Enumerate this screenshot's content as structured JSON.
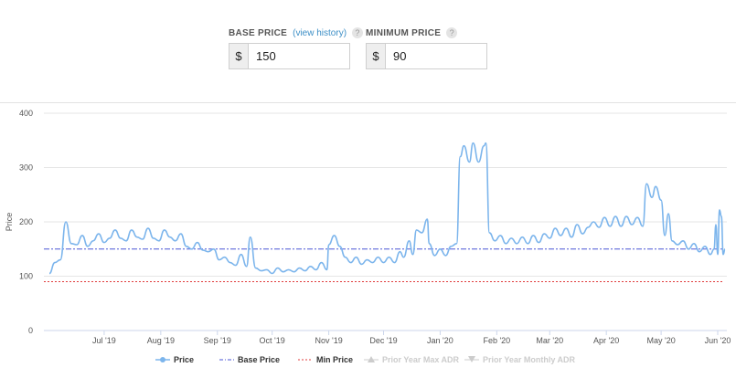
{
  "base_price": {
    "label": "BASE PRICE",
    "history_link": "(view history)",
    "help": "?",
    "currency": "$",
    "value": "150"
  },
  "minimum_price": {
    "label": "MINIMUM PRICE",
    "help": "?",
    "currency": "$",
    "value": "90"
  },
  "colors": {
    "price": "#7cb5ec",
    "base": "#4a56d6",
    "min": "#e03c3c",
    "disabled": "#cccccc"
  },
  "chart_data": {
    "type": "line",
    "ylabel": "Price",
    "ylim": [
      0,
      400
    ],
    "yticks": [
      "0",
      "100",
      "200",
      "300",
      "400"
    ],
    "x_range": [
      "2019-06-01",
      "2020-06-05"
    ],
    "xticks": [
      {
        "label": "Jul '19",
        "date": "2019-07-01"
      },
      {
        "label": "Aug '19",
        "date": "2019-08-01"
      },
      {
        "label": "Sep '19",
        "date": "2019-09-01"
      },
      {
        "label": "Oct '19",
        "date": "2019-10-01"
      },
      {
        "label": "Nov '19",
        "date": "2019-11-01"
      },
      {
        "label": "Dec '19",
        "date": "2019-12-01"
      },
      {
        "label": "Jan '20",
        "date": "2020-01-01"
      },
      {
        "label": "Feb '20",
        "date": "2020-02-01"
      },
      {
        "label": "Mar '20",
        "date": "2020-03-01"
      },
      {
        "label": "Apr '20",
        "date": "2020-04-01"
      },
      {
        "label": "May '20",
        "date": "2020-05-01"
      },
      {
        "label": "Jun '20",
        "date": "2020-06-01"
      }
    ],
    "series": [
      {
        "name": "Price",
        "points": [
          [
            "2019-06-01",
            105
          ],
          [
            "2019-06-04",
            125
          ],
          [
            "2019-06-07",
            130
          ],
          [
            "2019-06-10",
            200
          ],
          [
            "2019-06-13",
            160
          ],
          [
            "2019-06-16",
            158
          ],
          [
            "2019-06-19",
            175
          ],
          [
            "2019-06-22",
            155
          ],
          [
            "2019-06-25",
            165
          ],
          [
            "2019-06-28",
            178
          ],
          [
            "2019-07-01",
            162
          ],
          [
            "2019-07-04",
            170
          ],
          [
            "2019-07-07",
            185
          ],
          [
            "2019-07-10",
            170
          ],
          [
            "2019-07-13",
            165
          ],
          [
            "2019-07-16",
            185
          ],
          [
            "2019-07-19",
            172
          ],
          [
            "2019-07-22",
            168
          ],
          [
            "2019-07-25",
            188
          ],
          [
            "2019-07-28",
            170
          ],
          [
            "2019-07-31",
            165
          ],
          [
            "2019-08-03",
            185
          ],
          [
            "2019-08-06",
            172
          ],
          [
            "2019-08-09",
            165
          ],
          [
            "2019-08-12",
            178
          ],
          [
            "2019-08-15",
            155
          ],
          [
            "2019-08-18",
            150
          ],
          [
            "2019-08-21",
            162
          ],
          [
            "2019-08-24",
            148
          ],
          [
            "2019-08-27",
            145
          ],
          [
            "2019-08-30",
            150
          ],
          [
            "2019-09-02",
            130
          ],
          [
            "2019-09-05",
            135
          ],
          [
            "2019-09-08",
            125
          ],
          [
            "2019-09-11",
            120
          ],
          [
            "2019-09-14",
            140
          ],
          [
            "2019-09-17",
            118
          ],
          [
            "2019-09-19",
            172
          ],
          [
            "2019-09-22",
            115
          ],
          [
            "2019-09-25",
            110
          ],
          [
            "2019-09-28",
            112
          ],
          [
            "2019-10-01",
            105
          ],
          [
            "2019-10-04",
            115
          ],
          [
            "2019-10-07",
            108
          ],
          [
            "2019-10-10",
            112
          ],
          [
            "2019-10-13",
            108
          ],
          [
            "2019-10-16",
            115
          ],
          [
            "2019-10-19",
            110
          ],
          [
            "2019-10-22",
            118
          ],
          [
            "2019-10-25",
            112
          ],
          [
            "2019-10-28",
            125
          ],
          [
            "2019-10-31",
            112
          ],
          [
            "2019-11-01",
            158
          ],
          [
            "2019-11-04",
            175
          ],
          [
            "2019-11-07",
            155
          ],
          [
            "2019-11-10",
            135
          ],
          [
            "2019-11-13",
            125
          ],
          [
            "2019-11-16",
            135
          ],
          [
            "2019-11-19",
            122
          ],
          [
            "2019-11-22",
            130
          ],
          [
            "2019-11-25",
            125
          ],
          [
            "2019-11-28",
            135
          ],
          [
            "2019-12-01",
            125
          ],
          [
            "2019-12-04",
            135
          ],
          [
            "2019-12-07",
            125
          ],
          [
            "2019-12-10",
            145
          ],
          [
            "2019-12-12",
            135
          ],
          [
            "2019-12-15",
            165
          ],
          [
            "2019-12-17",
            140
          ],
          [
            "2019-12-19",
            185
          ],
          [
            "2019-12-22",
            180
          ],
          [
            "2019-12-25",
            205
          ],
          [
            "2019-12-26",
            160
          ],
          [
            "2019-12-29",
            138
          ],
          [
            "2020-01-01",
            150
          ],
          [
            "2020-01-04",
            138
          ],
          [
            "2020-01-07",
            155
          ],
          [
            "2020-01-10",
            160
          ],
          [
            "2020-01-12",
            320
          ],
          [
            "2020-01-14",
            340
          ],
          [
            "2020-01-17",
            310
          ],
          [
            "2020-01-19",
            345
          ],
          [
            "2020-01-22",
            310
          ],
          [
            "2020-01-25",
            340
          ],
          [
            "2020-01-26",
            345
          ],
          [
            "2020-01-28",
            180
          ],
          [
            "2020-01-31",
            165
          ],
          [
            "2020-02-03",
            175
          ],
          [
            "2020-02-06",
            160
          ],
          [
            "2020-02-09",
            170
          ],
          [
            "2020-02-12",
            160
          ],
          [
            "2020-02-15",
            172
          ],
          [
            "2020-02-18",
            160
          ],
          [
            "2020-02-21",
            175
          ],
          [
            "2020-02-24",
            162
          ],
          [
            "2020-02-27",
            178
          ],
          [
            "2020-03-01",
            170
          ],
          [
            "2020-03-04",
            188
          ],
          [
            "2020-03-07",
            175
          ],
          [
            "2020-03-10",
            188
          ],
          [
            "2020-03-13",
            172
          ],
          [
            "2020-03-16",
            195
          ],
          [
            "2020-03-19",
            178
          ],
          [
            "2020-03-22",
            190
          ],
          [
            "2020-03-25",
            200
          ],
          [
            "2020-03-28",
            190
          ],
          [
            "2020-03-31",
            208
          ],
          [
            "2020-04-03",
            192
          ],
          [
            "2020-04-06",
            210
          ],
          [
            "2020-04-09",
            192
          ],
          [
            "2020-04-12",
            210
          ],
          [
            "2020-04-15",
            195
          ],
          [
            "2020-04-18",
            208
          ],
          [
            "2020-04-21",
            192
          ],
          [
            "2020-04-23",
            270
          ],
          [
            "2020-04-26",
            245
          ],
          [
            "2020-04-28",
            265
          ],
          [
            "2020-05-01",
            240
          ],
          [
            "2020-05-03",
            175
          ],
          [
            "2020-05-05",
            215
          ],
          [
            "2020-05-07",
            165
          ],
          [
            "2020-05-10",
            158
          ],
          [
            "2020-05-13",
            165
          ],
          [
            "2020-05-16",
            150
          ],
          [
            "2020-05-19",
            160
          ],
          [
            "2020-05-22",
            145
          ],
          [
            "2020-05-25",
            155
          ],
          [
            "2020-05-28",
            140
          ],
          [
            "2020-05-30",
            150
          ],
          [
            "2020-05-31",
            195
          ],
          [
            "2020-06-01",
            140
          ],
          [
            "2020-06-02",
            222
          ],
          [
            "2020-06-03",
            210
          ],
          [
            "2020-06-04",
            140
          ],
          [
            "2020-06-05",
            150
          ]
        ]
      },
      {
        "name": "Base Price",
        "value": 150
      },
      {
        "name": "Min Price",
        "value": 90
      }
    ],
    "legend": [
      {
        "name": "Price",
        "enabled": true,
        "marker": "circle"
      },
      {
        "name": "Base Price",
        "enabled": true,
        "marker": "dashdot"
      },
      {
        "name": "Min Price",
        "enabled": true,
        "marker": "dash"
      },
      {
        "name": "Prior Year Max ADR",
        "enabled": false,
        "marker": "triangle-up"
      },
      {
        "name": "Prior Year Monthly ADR",
        "enabled": false,
        "marker": "triangle-down"
      }
    ],
    "legend_position": "bottom-center",
    "grid": true
  }
}
